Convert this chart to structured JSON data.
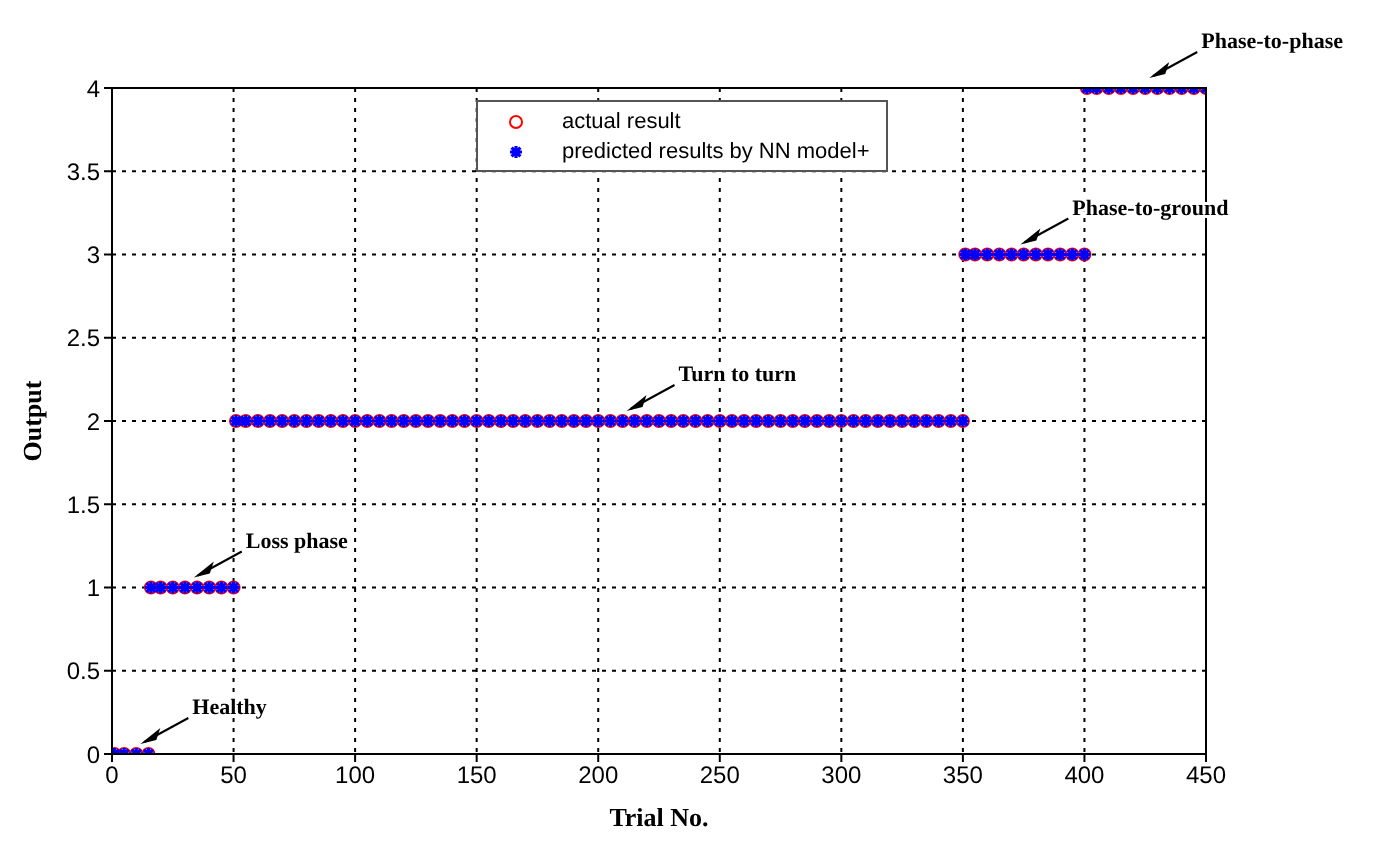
{
  "chart_data": {
    "type": "scatter",
    "xlabel": "Trial No.",
    "ylabel": "Output",
    "x": [
      1,
      5,
      10,
      15,
      16,
      20,
      25,
      30,
      35,
      40,
      45,
      50,
      51,
      55,
      60,
      65,
      70,
      75,
      80,
      85,
      90,
      95,
      100,
      105,
      110,
      115,
      120,
      125,
      130,
      135,
      140,
      145,
      150,
      155,
      160,
      165,
      170,
      175,
      180,
      185,
      190,
      195,
      200,
      205,
      210,
      215,
      220,
      225,
      230,
      235,
      240,
      245,
      250,
      255,
      260,
      265,
      270,
      275,
      280,
      285,
      290,
      295,
      300,
      305,
      310,
      315,
      320,
      325,
      330,
      335,
      340,
      345,
      350,
      351,
      355,
      360,
      365,
      370,
      375,
      380,
      385,
      390,
      395,
      400,
      401,
      405,
      410,
      415,
      420,
      425,
      430,
      435,
      440,
      445,
      450
    ],
    "series": [
      {
        "name": "actual result",
        "color": "#ff0000",
        "marker": "circle",
        "values": [
          0,
          0,
          0,
          0,
          1,
          1,
          1,
          1,
          1,
          1,
          1,
          1,
          2,
          2,
          2,
          2,
          2,
          2,
          2,
          2,
          2,
          2,
          2,
          2,
          2,
          2,
          2,
          2,
          2,
          2,
          2,
          2,
          2,
          2,
          2,
          2,
          2,
          2,
          2,
          2,
          2,
          2,
          2,
          2,
          2,
          2,
          2,
          2,
          2,
          2,
          2,
          2,
          2,
          2,
          2,
          2,
          2,
          2,
          2,
          2,
          2,
          2,
          2,
          2,
          2,
          2,
          2,
          2,
          2,
          2,
          2,
          2,
          2,
          3,
          3,
          3,
          3,
          3,
          3,
          3,
          3,
          3,
          3,
          3,
          4,
          4,
          4,
          4,
          4,
          4,
          4,
          4,
          4,
          4,
          4
        ]
      },
      {
        "name": "predicted results by NN model+",
        "color": "#0000ff",
        "marker": "cross",
        "values": [
          0,
          0,
          0,
          0,
          1,
          1,
          1,
          1,
          1,
          1,
          1,
          1,
          2,
          2,
          2,
          2,
          2,
          2,
          2,
          2,
          2,
          2,
          2,
          2,
          2,
          2,
          2,
          2,
          2,
          2,
          2,
          2,
          2,
          2,
          2,
          2,
          2,
          2,
          2,
          2,
          2,
          2,
          2,
          2,
          2,
          2,
          2,
          2,
          2,
          2,
          2,
          2,
          2,
          2,
          2,
          2,
          2,
          2,
          2,
          2,
          2,
          2,
          2,
          2,
          2,
          2,
          2,
          2,
          2,
          2,
          2,
          2,
          2,
          3,
          3,
          3,
          3,
          3,
          3,
          3,
          3,
          3,
          3,
          3,
          4,
          4,
          4,
          4,
          4,
          4,
          4,
          4,
          4,
          4,
          4
        ]
      }
    ],
    "xlim": [
      0,
      450
    ],
    "xticks": [
      0,
      50,
      100,
      150,
      200,
      250,
      300,
      350,
      400,
      450
    ],
    "ylim": [
      0,
      4
    ],
    "yticks": [
      0,
      0.5,
      1,
      1.5,
      2,
      2.5,
      3,
      3.5,
      4
    ],
    "grid": true,
    "legend": "top",
    "annotations": [
      {
        "text": "Healthy",
        "x": 10,
        "y": 0
      },
      {
        "text": "Loss phase",
        "x": 32,
        "y": 1
      },
      {
        "text": "Turn to turn",
        "x": 210,
        "y": 2
      },
      {
        "text": "Phase-to-ground",
        "x": 372,
        "y": 3
      },
      {
        "text": "Phase-to-phase",
        "x": 425,
        "y": 4
      }
    ]
  }
}
